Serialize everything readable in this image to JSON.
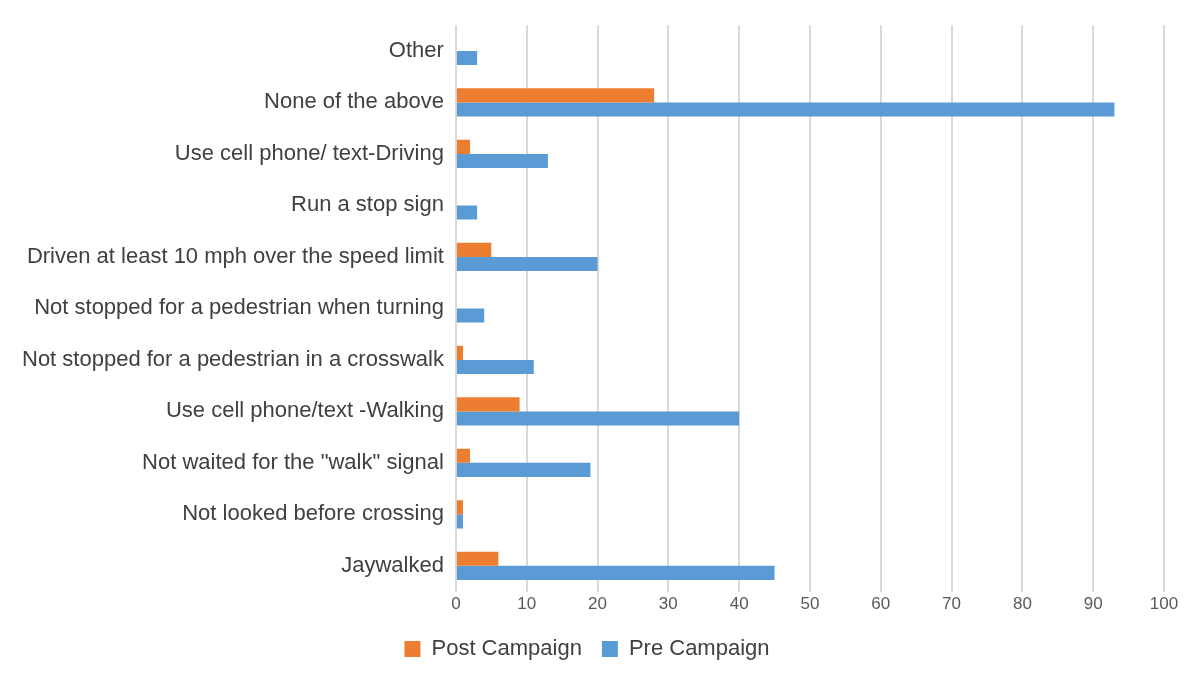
{
  "chart_data": {
    "type": "bar",
    "orientation": "horizontal",
    "categories": [
      "Other",
      "None of the above",
      "Use cell phone/ text-Driving",
      "Run a stop sign",
      "Driven at least 10 mph over the speed limit",
      "Not stopped for a pedestrian when turning",
      "Not stopped for a pedestrian in a crosswalk",
      "Use cell phone/text -Walking",
      "Not waited for the \"walk\" signal",
      "Not looked before crossing",
      "Jaywalked"
    ],
    "series": [
      {
        "name": "Post Campaign",
        "color": "#ed7d31",
        "values": [
          0,
          28,
          2,
          0,
          5,
          0,
          1,
          9,
          2,
          1,
          6
        ]
      },
      {
        "name": "Pre Campaign",
        "color": "#5b9bd5",
        "values": [
          3,
          93,
          13,
          3,
          20,
          4,
          11,
          40,
          19,
          1,
          45
        ]
      }
    ],
    "xlim": [
      0,
      100
    ],
    "xticks": [
      0,
      10,
      20,
      30,
      40,
      50,
      60,
      70,
      80,
      90,
      100
    ],
    "grid": "x",
    "legend": "bottom"
  }
}
